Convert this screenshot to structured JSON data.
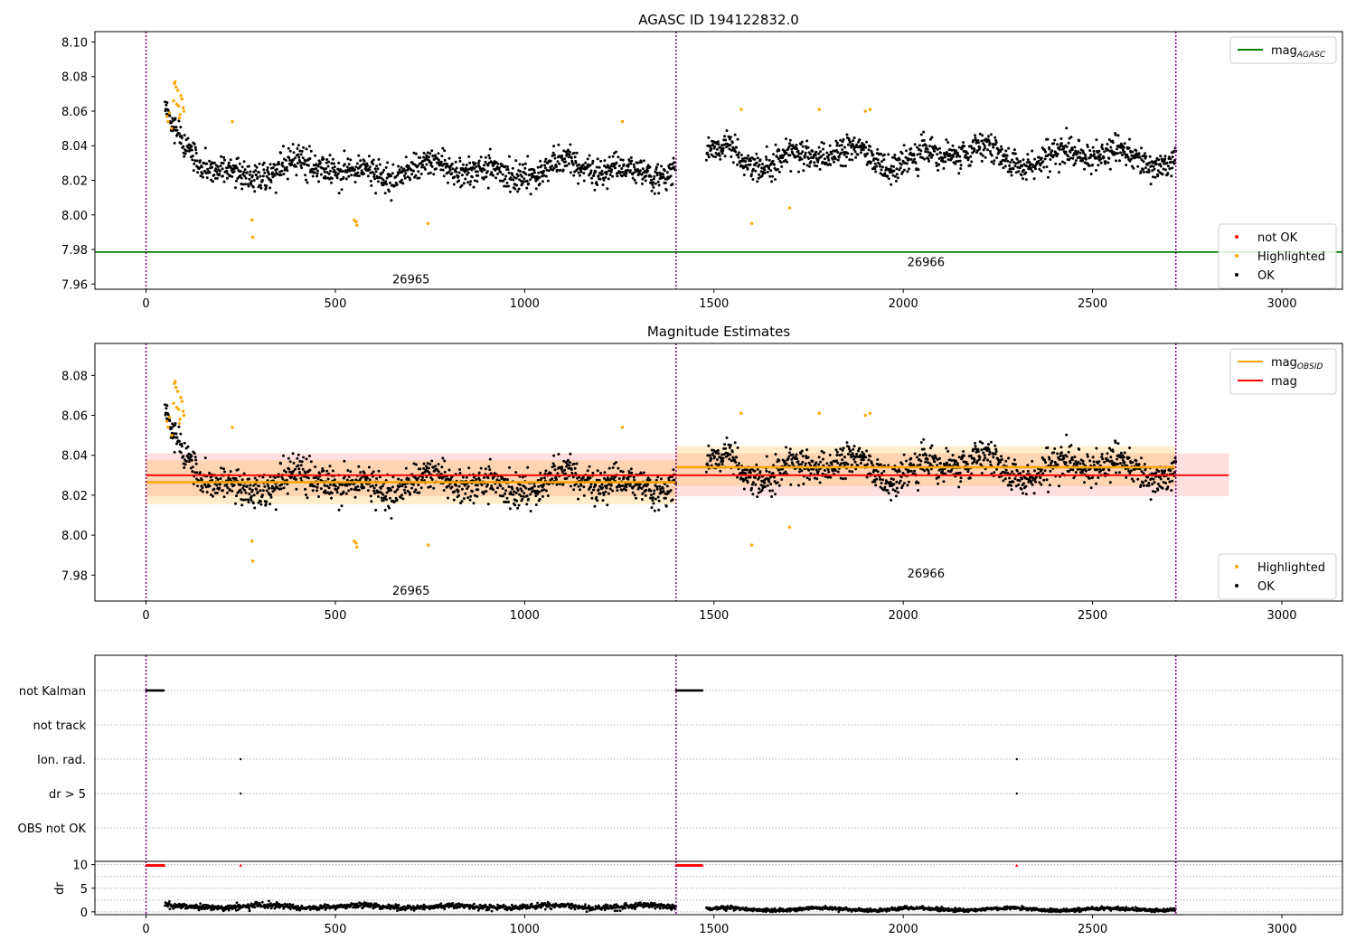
{
  "chart_data": [
    {
      "type": "scatter",
      "title": "AGASC ID 194122832.0",
      "xlabel": "",
      "ylabel": "",
      "xlim": [
        -135,
        3160
      ],
      "ylim": [
        7.957,
        8.106
      ],
      "xticks": [
        0,
        500,
        1000,
        1500,
        2000,
        2500,
        3000
      ],
      "xtick_labels": [
        "0",
        "500",
        "1000",
        "1500",
        "2000",
        "2500",
        "3000"
      ],
      "yticks": [
        7.96,
        7.98,
        8.0,
        8.02,
        8.04,
        8.06,
        8.08,
        8.1
      ],
      "ytick_labels": [
        "7.96",
        "7.98",
        "8.00",
        "8.02",
        "8.04",
        "8.06",
        "8.08",
        "8.10"
      ],
      "obsid_boundaries": [
        0,
        1400,
        2720
      ],
      "obsid_labels": [
        {
          "text": "26965",
          "x": 700,
          "y": 7.963
        },
        {
          "text": "26966",
          "x": 2060,
          "y": 7.973
        }
      ],
      "reference_line": {
        "name": "mag",
        "subscript": "AGASC",
        "y": 7.9785,
        "color": "#008000"
      },
      "segments": [
        {
          "x_start": 50,
          "x_end": 1400,
          "level": 8.026,
          "noise": 0.007,
          "wave": 0.006,
          "early_bump": {
            "x": [
              50,
              120
            ],
            "amp": 0.03
          }
        },
        {
          "x_start": 1480,
          "x_end": 2720,
          "level": 8.034,
          "noise": 0.007,
          "wave": 0.007
        }
      ],
      "highlighted_points": [
        {
          "x": 55,
          "y": 8.057
        },
        {
          "x": 58,
          "y": 8.054
        },
        {
          "x": 62,
          "y": 8.059
        },
        {
          "x": 68,
          "y": 8.05
        },
        {
          "x": 73,
          "y": 8.066
        },
        {
          "x": 75,
          "y": 8.076
        },
        {
          "x": 77,
          "y": 8.077
        },
        {
          "x": 79,
          "y": 8.074
        },
        {
          "x": 81,
          "y": 8.064
        },
        {
          "x": 84,
          "y": 8.072
        },
        {
          "x": 86,
          "y": 8.063
        },
        {
          "x": 88,
          "y": 8.056
        },
        {
          "x": 90,
          "y": 8.058
        },
        {
          "x": 92,
          "y": 8.069
        },
        {
          "x": 95,
          "y": 8.067
        },
        {
          "x": 98,
          "y": 8.062
        },
        {
          "x": 100,
          "y": 8.06
        },
        {
          "x": 228,
          "y": 8.054
        },
        {
          "x": 280,
          "y": 7.997
        },
        {
          "x": 282,
          "y": 7.987
        },
        {
          "x": 550,
          "y": 7.997
        },
        {
          "x": 555,
          "y": 7.996
        },
        {
          "x": 557,
          "y": 7.994
        },
        {
          "x": 745,
          "y": 7.995
        },
        {
          "x": 1258,
          "y": 8.054
        },
        {
          "x": 1572,
          "y": 8.061
        },
        {
          "x": 1600,
          "y": 7.995
        },
        {
          "x": 1700,
          "y": 8.004
        },
        {
          "x": 1778,
          "y": 8.061
        },
        {
          "x": 1900,
          "y": 8.06
        },
        {
          "x": 1912,
          "y": 8.061
        }
      ],
      "legend_top_right": [
        {
          "name": "mag",
          "subscript": "AGASC",
          "color": "#008000"
        }
      ],
      "legend_bottom_right": [
        {
          "name": "not OK",
          "color": "#ff0000"
        },
        {
          "name": "Highlighted",
          "color": "#ffa500"
        },
        {
          "name": "OK",
          "color": "#000000"
        }
      ]
    },
    {
      "type": "scatter",
      "title": "Magnitude Estimates",
      "xlabel": "",
      "ylabel": "",
      "xlim": [
        -135,
        3160
      ],
      "ylim": [
        7.967,
        8.096
      ],
      "xticks": [
        0,
        500,
        1000,
        1500,
        2000,
        2500,
        3000
      ],
      "xtick_labels": [
        "0",
        "500",
        "1000",
        "1500",
        "2000",
        "2500",
        "3000"
      ],
      "yticks": [
        7.98,
        8.0,
        8.02,
        8.04,
        8.06,
        8.08
      ],
      "ytick_labels": [
        "7.98",
        "8.00",
        "8.02",
        "8.04",
        "8.06",
        "8.08"
      ],
      "obsid_boundaries": [
        0,
        1400,
        2720
      ],
      "obsid_labels": [
        {
          "text": "26965",
          "x": 700,
          "y": 7.9725
        },
        {
          "text": "26966",
          "x": 2060,
          "y": 7.981
        }
      ],
      "mag_line": {
        "name": "mag",
        "y": 8.03,
        "band": [
          8.0195,
          8.041
        ],
        "x_range": [
          0,
          2860
        ],
        "color": "#ff0000"
      },
      "mag_obsid": [
        {
          "x_start": 0,
          "x_end": 1400,
          "y": 8.0265,
          "band": [
            8.0155,
            8.0375
          ]
        },
        {
          "x_start": 1400,
          "x_end": 2720,
          "y": 8.034,
          "band": [
            8.0245,
            8.0445
          ]
        }
      ],
      "legend_top_right": [
        {
          "name": "mag",
          "subscript": "OBSID",
          "color": "#ffa500"
        },
        {
          "name": "mag",
          "subscript": "",
          "color": "#ff0000"
        }
      ],
      "legend_bottom_right": [
        {
          "name": "Highlighted",
          "color": "#ffa500"
        },
        {
          "name": "OK",
          "color": "#000000"
        }
      ]
    },
    {
      "type": "scatter",
      "title": "",
      "xlim": [
        -135,
        3160
      ],
      "xticks": [
        0,
        500,
        1000,
        1500,
        2000,
        2500,
        3000
      ],
      "xtick_labels": [
        "0",
        "500",
        "1000",
        "1500",
        "2000",
        "2500",
        "3000"
      ],
      "flag_rows": [
        "not Kalman",
        "not track",
        "Ion. rad.",
        "dr > 5",
        "OBS not OK"
      ],
      "flag_events": [
        {
          "row": "not Kalman",
          "x_start": 0,
          "x_end": 48
        },
        {
          "row": "not Kalman",
          "x_start": 1400,
          "x_end": 1470
        },
        {
          "row": "Ion. rad.",
          "x": 250
        },
        {
          "row": "Ion. rad.",
          "x": 2300
        },
        {
          "row": "dr > 5",
          "x": 250
        },
        {
          "row": "dr > 5",
          "x": 2300
        }
      ],
      "obsid_boundaries": [
        0,
        1400,
        2720
      ]
    },
    {
      "type": "scatter",
      "title": "",
      "ylabel": "dr",
      "xlim": [
        -135,
        3160
      ],
      "ylim": [
        -0.6,
        10.7
      ],
      "xticks": [
        0,
        500,
        1000,
        1500,
        2000,
        2500,
        3000
      ],
      "xtick_labels": [
        "0",
        "500",
        "1000",
        "1500",
        "2000",
        "2500",
        "3000"
      ],
      "yticks": [
        0,
        5,
        10
      ],
      "ytick_labels": [
        "0",
        "5",
        "10"
      ],
      "dr_segments": [
        {
          "x_start": 50,
          "x_end": 1400,
          "level": 1.1,
          "spread": 0.5
        },
        {
          "x_start": 1480,
          "x_end": 2720,
          "level": 0.55,
          "spread": 0.3
        }
      ],
      "dr_high_runs": [
        {
          "x_start": 0,
          "x_end": 48,
          "y": 9.8
        },
        {
          "x_start": 1400,
          "x_end": 1470,
          "y": 9.8
        }
      ],
      "dr_high_points": [
        {
          "x": 250,
          "y": 9.8
        },
        {
          "x": 2300,
          "y": 9.8
        }
      ],
      "obsid_boundaries": [
        0,
        1400,
        2720
      ]
    }
  ]
}
